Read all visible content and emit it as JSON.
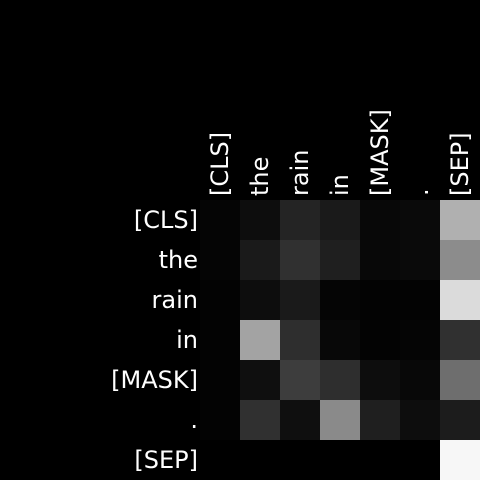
{
  "chart_data": {
    "type": "heatmap",
    "title": "",
    "xlabel": "",
    "ylabel": "",
    "x_labels": [
      "[CLS]",
      "the",
      "rain",
      "in",
      "[MASK]",
      ".",
      "[SEP]"
    ],
    "y_labels": [
      "[CLS]",
      "the",
      "rain",
      "in",
      "[MASK]",
      ".",
      "[SEP]"
    ],
    "colormap": "grayscale",
    "value_range": [
      0,
      1
    ],
    "grid": false,
    "legend": "none",
    "values": [
      [
        0.02,
        0.05,
        0.14,
        0.1,
        0.03,
        0.04,
        0.69
      ],
      [
        0.02,
        0.1,
        0.19,
        0.12,
        0.03,
        0.04,
        0.55
      ],
      [
        0.01,
        0.05,
        0.1,
        0.02,
        0.01,
        0.01,
        0.86
      ],
      [
        0.01,
        0.64,
        0.18,
        0.03,
        0.01,
        0.02,
        0.19
      ],
      [
        0.01,
        0.06,
        0.24,
        0.18,
        0.05,
        0.03,
        0.43
      ],
      [
        0.01,
        0.19,
        0.06,
        0.54,
        0.12,
        0.05,
        0.11
      ],
      [
        0.0,
        0.0,
        0.0,
        0.0,
        0.0,
        0.0,
        0.97
      ]
    ]
  }
}
